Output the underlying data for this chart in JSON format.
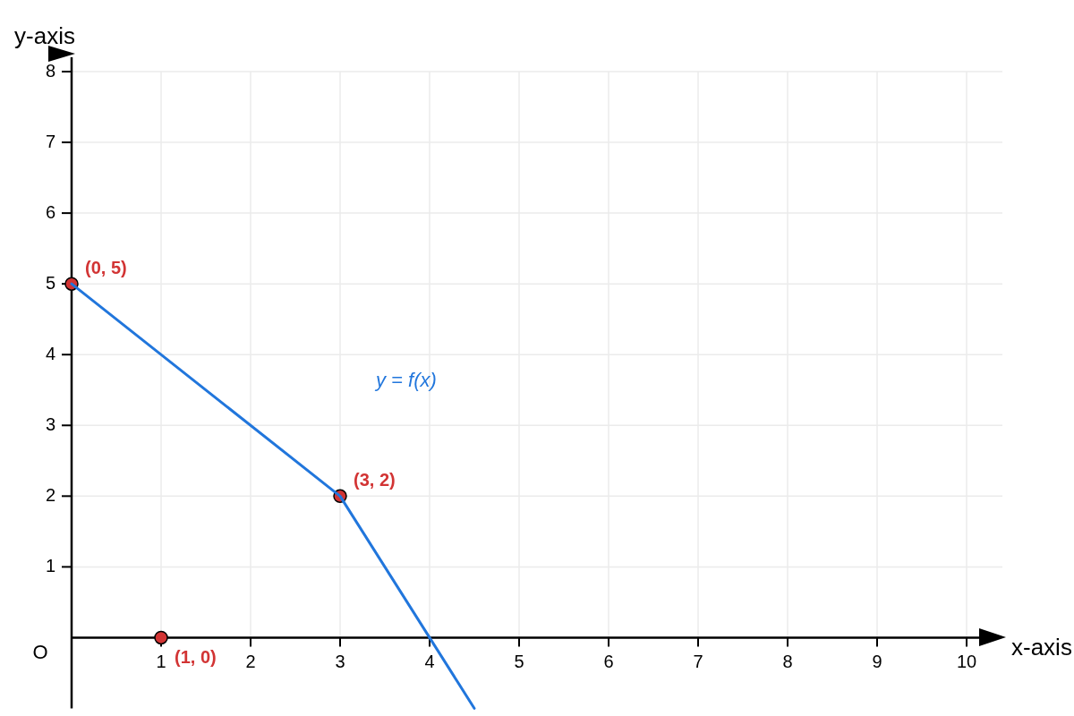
{
  "chart_data": {
    "type": "line",
    "xlabel": "x-axis",
    "ylabel": "y-axis",
    "xlim": [
      0,
      10.4
    ],
    "ylim": [
      -1,
      8
    ],
    "xticks": [
      1,
      2,
      3,
      4,
      5,
      6,
      7,
      8,
      9,
      10
    ],
    "yticks": [
      1,
      2,
      3,
      4,
      5,
      6,
      7,
      8
    ],
    "grid": true,
    "series": [
      {
        "name": "y = f(x)",
        "type": "line",
        "color": "#2176dc",
        "marker": "none",
        "x": [
          0,
          3,
          4.5
        ],
        "values": [
          5,
          2,
          -1
        ]
      },
      {
        "type": "scatter",
        "color": "#d23434",
        "marker": "circle",
        "x": [
          0,
          3,
          1
        ],
        "values": [
          5,
          2,
          0
        ],
        "value_labels": [
          "(0, 5)",
          "(3, 2)",
          "(1, 0)"
        ]
      }
    ],
    "annotations": [
      "O"
    ]
  }
}
